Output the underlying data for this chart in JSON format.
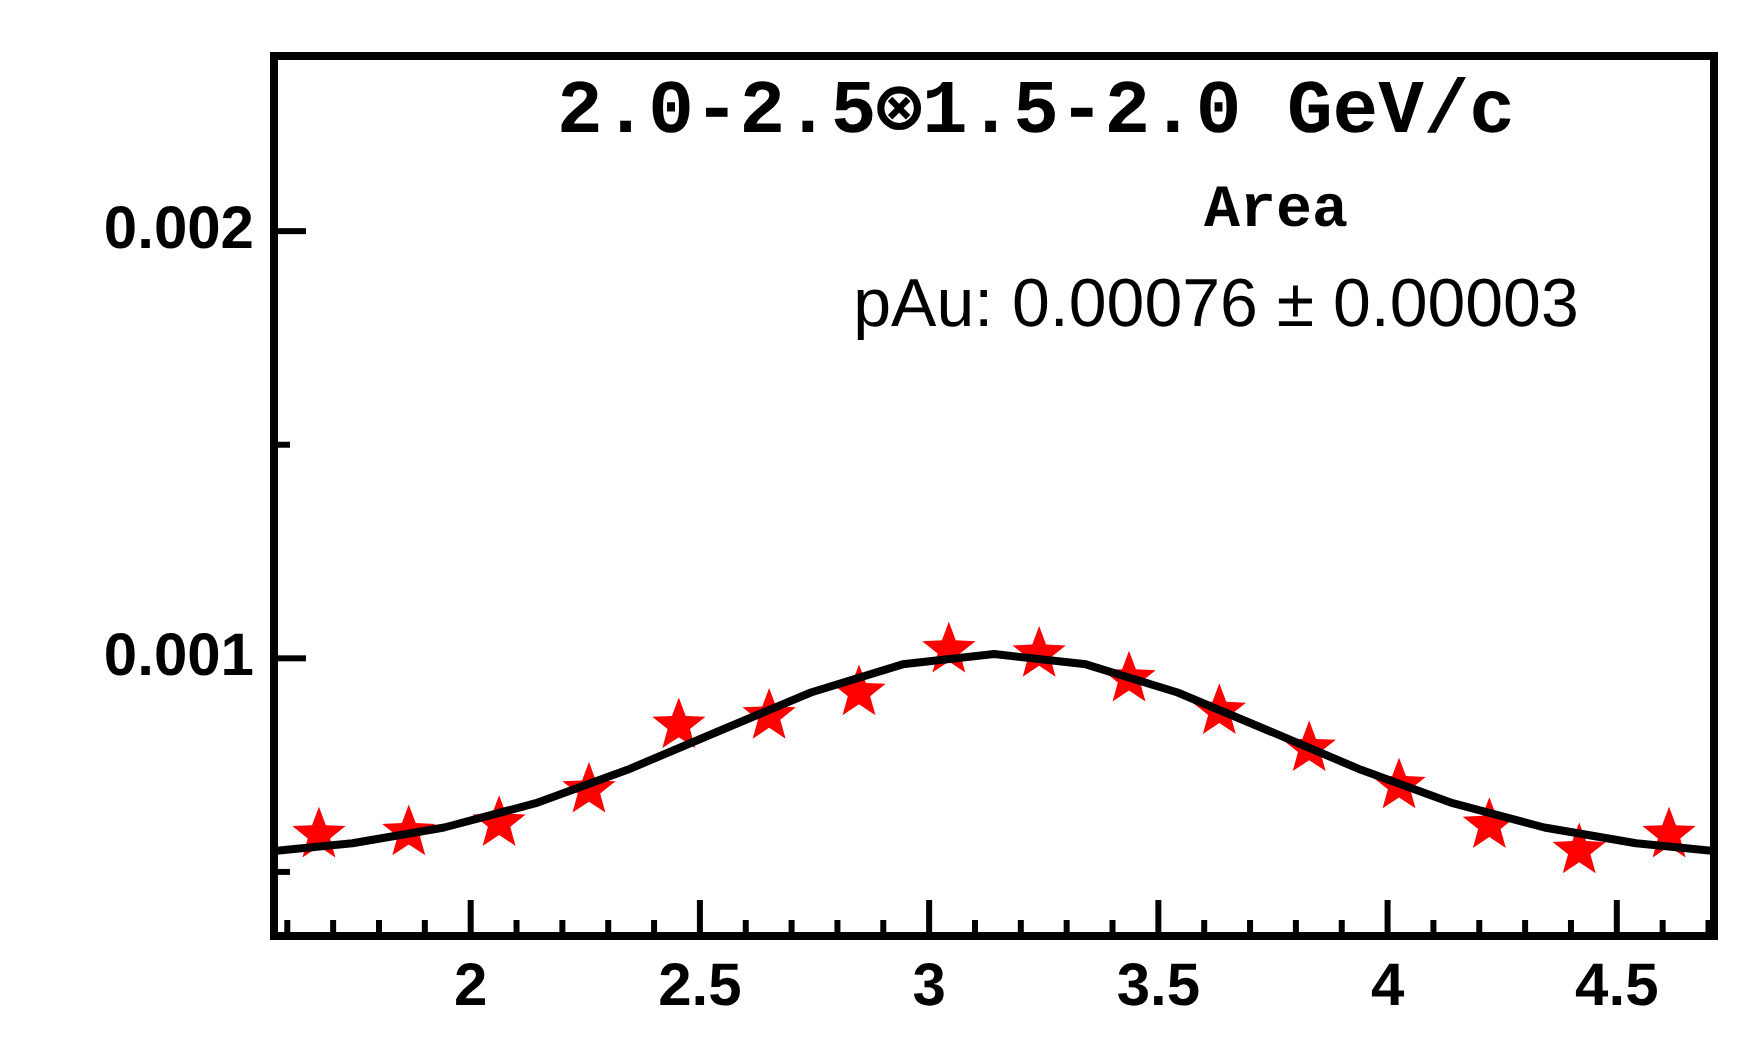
{
  "chart_data": {
    "type": "scatter",
    "title": "2.0-2.5⊗1.5-2.0 GeV/c",
    "annotations": [
      "Area",
      "pAu: 0.00076 ± 0.00003"
    ],
    "xlim": [
      1.571,
      4.712
    ],
    "ylim": [
      0.00035,
      0.00241
    ],
    "xticks": [
      {
        "value": 1.6,
        "label": null
      },
      {
        "value": 1.7,
        "label": null
      },
      {
        "value": 1.8,
        "label": null
      },
      {
        "value": 1.9,
        "label": null
      },
      2,
      {
        "value": 2.1,
        "label": null
      },
      {
        "value": 2.2,
        "label": null
      },
      {
        "value": 2.3,
        "label": null
      },
      {
        "value": 2.4,
        "label": null
      },
      2.5,
      {
        "value": 2.6,
        "label": null
      },
      {
        "value": 2.7,
        "label": null
      },
      {
        "value": 2.8,
        "label": null
      },
      {
        "value": 2.9,
        "label": null
      },
      3,
      {
        "value": 3.1,
        "label": null
      },
      {
        "value": 3.2,
        "label": null
      },
      {
        "value": 3.3,
        "label": null
      },
      {
        "value": 3.4,
        "label": null
      },
      3.5,
      {
        "value": 3.6,
        "label": null
      },
      {
        "value": 3.7,
        "label": null
      },
      {
        "value": 3.8,
        "label": null
      },
      {
        "value": 3.9,
        "label": null
      },
      4,
      {
        "value": 4.1,
        "label": null
      },
      {
        "value": 4.2,
        "label": null
      },
      {
        "value": 4.3,
        "label": null
      },
      {
        "value": 4.4,
        "label": null
      },
      4.5,
      {
        "value": 4.6,
        "label": null
      },
      {
        "value": 4.7,
        "label": null
      }
    ],
    "yticks": [
      {
        "value": 0.0005,
        "label": null
      },
      0.001,
      {
        "value": 0.0015,
        "label": null
      },
      0.002
    ],
    "grid": false,
    "legend": false,
    "series": [
      {
        "color": "#ff0000",
        "marker": "star",
        "x": [
          1.669,
          1.865,
          2.062,
          2.258,
          2.454,
          2.651,
          2.847,
          3.043,
          3.24,
          3.436,
          3.633,
          3.829,
          4.025,
          4.222,
          4.418,
          4.614
        ],
        "values": [
          0.000587,
          0.000592,
          0.000614,
          0.000692,
          0.000843,
          0.000865,
          0.00092,
          0.00102,
          0.00101,
          0.000952,
          0.000876,
          0.000789,
          0.000702,
          0.000609,
          0.00055,
          0.000587
        ]
      },
      {
        "type": "line",
        "color": "#000000",
        "marker": "none",
        "line_style": "solid",
        "x": [
          1.571,
          1.742,
          1.942,
          2.142,
          2.342,
          2.542,
          2.742,
          2.942,
          3.142,
          3.342,
          3.542,
          3.742,
          3.942,
          4.142,
          4.342,
          4.542,
          4.712
        ],
        "values": [
          0.000549,
          0.000567,
          0.000604,
          0.000661,
          0.000739,
          0.00083,
          0.00092,
          0.000986,
          0.00101,
          0.000986,
          0.00092,
          0.00083,
          0.000739,
          0.000661,
          0.000604,
          0.000567,
          0.000549
        ]
      }
    ]
  }
}
